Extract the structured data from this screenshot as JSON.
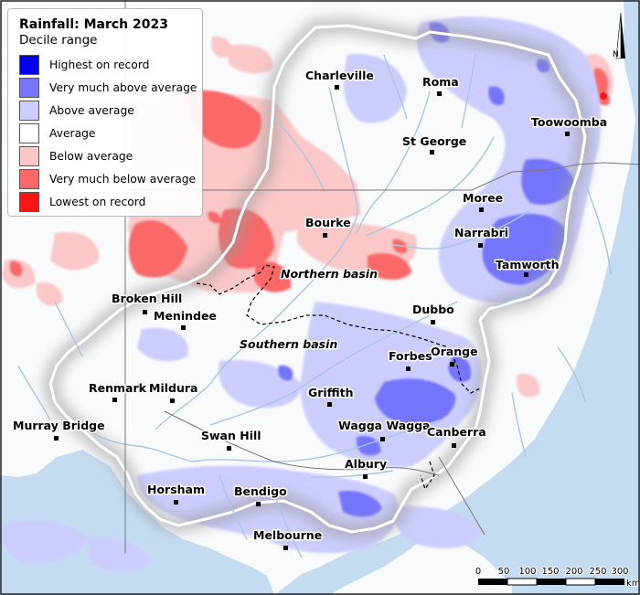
{
  "legend": {
    "title": "Rainfall: March 2023",
    "subtitle": "Decile range",
    "items": [
      {
        "label": "Highest on record",
        "color": "#0000ee"
      },
      {
        "label": "Very much above average",
        "color": "#7474fc"
      },
      {
        "label": "Above average",
        "color": "#cccdfd"
      },
      {
        "label": "Average",
        "color": "#ffffff"
      },
      {
        "label": "Below average",
        "color": "#fbc7c7"
      },
      {
        "label": "Very much below average",
        "color": "#fa6868"
      },
      {
        "label": "Lowest on record",
        "color": "#fc1515"
      }
    ]
  },
  "towns": [
    {
      "name": "Charleville"
    },
    {
      "name": "Roma"
    },
    {
      "name": "Toowoomba"
    },
    {
      "name": "St George"
    },
    {
      "name": "Moree"
    },
    {
      "name": "Narrabri"
    },
    {
      "name": "Tamworth"
    },
    {
      "name": "Bourke"
    },
    {
      "name": "Broken Hill"
    },
    {
      "name": "Menindee"
    },
    {
      "name": "Dubbo"
    },
    {
      "name": "Orange"
    },
    {
      "name": "Forbes"
    },
    {
      "name": "Griffith"
    },
    {
      "name": "Renmark"
    },
    {
      "name": "Mildura"
    },
    {
      "name": "Wagga Wagga"
    },
    {
      "name": "Canberra"
    },
    {
      "name": "Murray Bridge"
    },
    {
      "name": "Swan Hill"
    },
    {
      "name": "Albury"
    },
    {
      "name": "Horsham"
    },
    {
      "name": "Bendigo"
    },
    {
      "name": "Melbourne"
    }
  ],
  "basins": {
    "northern": "Northern basin",
    "southern": "Southern basin"
  },
  "scale": {
    "ticks": [
      "0",
      "50",
      "100",
      "150",
      "200",
      "250",
      "300"
    ],
    "unit": "km"
  },
  "north": {
    "label": "N"
  },
  "colors": {
    "ocean": "#c4dcf2",
    "land": "#ffffff",
    "outside_tint": "#f8fafc",
    "river": "#a9c6e0",
    "border": "#777777"
  }
}
